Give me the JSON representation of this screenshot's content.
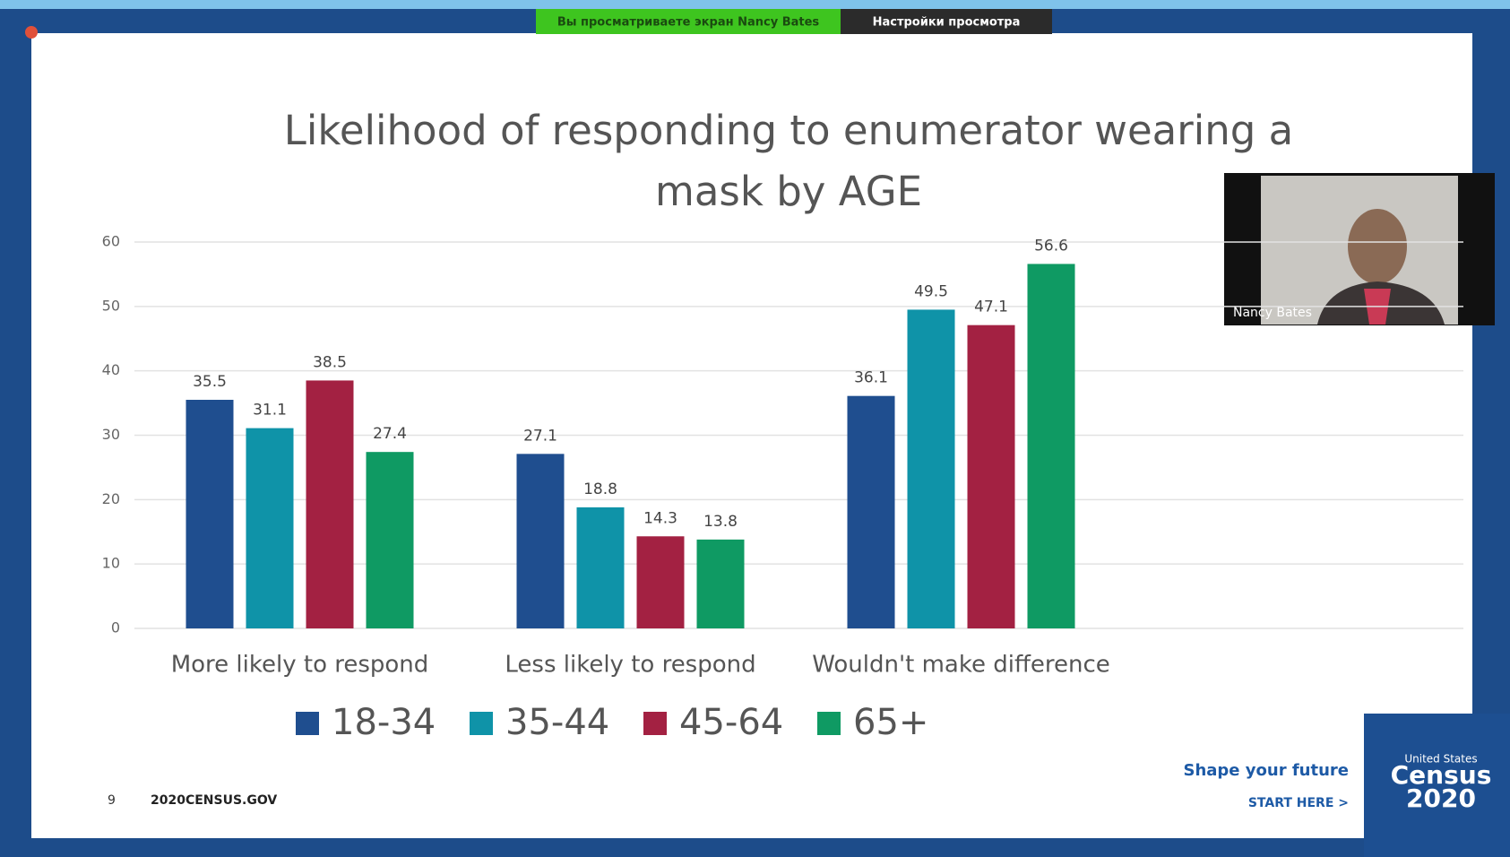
{
  "chart_data": {
    "type": "bar",
    "title": "Likelihood of responding to enumerator wearing a mask by AGE",
    "categories": [
      "More likely to respond",
      "Less likely to respond",
      "Wouldn't make difference"
    ],
    "series": [
      {
        "name": "18-34",
        "color": "#1f4e8f",
        "values": [
          35.5,
          27.1,
          36.1
        ]
      },
      {
        "name": "35-44",
        "color": "#0f93a8",
        "values": [
          31.1,
          18.8,
          49.5
        ]
      },
      {
        "name": "45-64",
        "color": "#a32142",
        "values": [
          38.5,
          14.3,
          47.1
        ]
      },
      {
        "name": "65+",
        "color": "#0f9a63",
        "values": [
          27.4,
          13.8,
          56.6
        ]
      }
    ],
    "ylim": [
      0,
      60
    ],
    "yticks": [
      0,
      10,
      20,
      30,
      40,
      50,
      60
    ],
    "grid": true
  },
  "screen": {
    "viewing_banner": "Вы просматриваете экран Nancy Bates",
    "view_settings": "Настройки просмотра",
    "video_name": "Nancy Bates",
    "slide_number": "9",
    "website": "2020CENSUS.GOV",
    "tagline": "Shape your future",
    "cta": "START HERE >",
    "logo_top": "United States",
    "logo_word": "Census",
    "logo_year": "2020"
  }
}
